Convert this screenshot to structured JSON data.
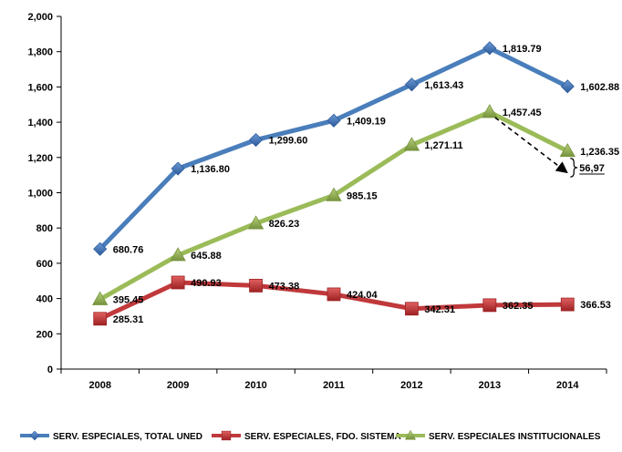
{
  "chart_data": {
    "type": "line",
    "title": "",
    "xlabel": "",
    "ylabel": "",
    "ylim": [
      0,
      2000
    ],
    "y_ticks": [
      0,
      200,
      400,
      600,
      800,
      1000,
      1200,
      1400,
      1600,
      1800,
      2000
    ],
    "y_tick_labels": [
      "0",
      "200",
      "400",
      "600",
      "800",
      "1,000",
      "1,200",
      "1,400",
      "1,600",
      "1,800",
      "2,000"
    ],
    "grid": false,
    "legend_position": "bottom",
    "categories": [
      "2008",
      "2009",
      "2010",
      "2011",
      "2012",
      "2013",
      "2014"
    ],
    "series": [
      {
        "name": "SERV. ESPECIALES, TOTAL UNED",
        "marker": "diamond",
        "color": "#4a7ebb",
        "values": [
          680.76,
          1136.8,
          1299.6,
          1409.19,
          1613.43,
          1819.79,
          1602.88
        ],
        "labels": [
          "680.76",
          "1,136.80",
          "1,299.60",
          "1,409.19",
          "1,613.43",
          "1,819.79",
          "1,602.88"
        ]
      },
      {
        "name": "SERV. ESPECIALES, FDO. SISTEMA",
        "marker": "square",
        "color": "#c0393b",
        "values": [
          285.31,
          490.93,
          473.38,
          424.04,
          342.31,
          362.35,
          366.53
        ],
        "labels": [
          "285.31",
          "490.93",
          "473.38",
          "424.04",
          "342.31",
          "362.35",
          "366.53"
        ]
      },
      {
        "name": "SERV. ESPECIALES INSTITUCIONALES",
        "marker": "triangle",
        "color": "#9bbb59",
        "values": [
          395.45,
          645.88,
          826.23,
          985.15,
          1271.11,
          1457.45,
          1236.35
        ],
        "labels": [
          "395.45",
          "645.88",
          "826.23",
          "985.15",
          "1,271.11",
          "1,457.45",
          "1,236.35"
        ]
      }
    ],
    "annotations": [
      {
        "text": "56,97",
        "from_category": "2013",
        "from_value": 1457.45,
        "to_category": "2014",
        "to_value": 1100
      }
    ]
  }
}
